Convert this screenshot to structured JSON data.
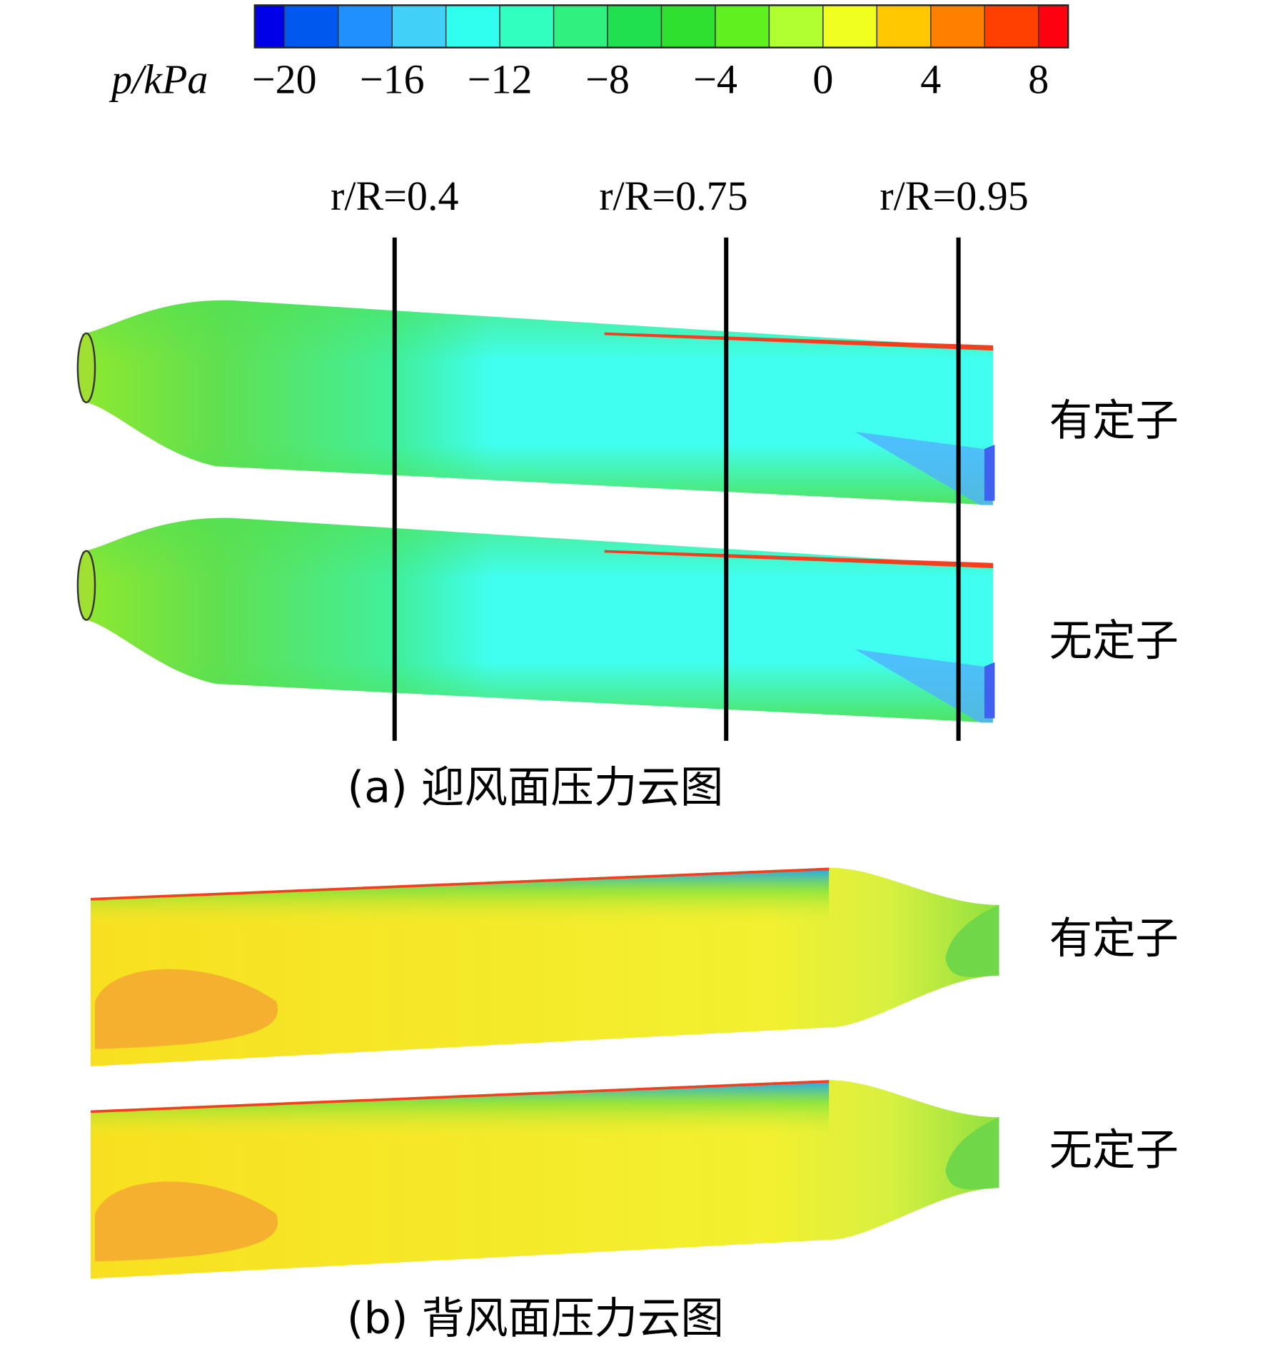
{
  "colorbar": {
    "label": "p/kPa",
    "range": [
      -21.1,
      9.1
    ],
    "levels": [
      -20,
      -18,
      -16,
      -14,
      -12,
      -10,
      -8,
      -6,
      -4,
      -2,
      0,
      2,
      4,
      6,
      8
    ],
    "colors": [
      "#0000e8",
      "#0058ee",
      "#2090ff",
      "#40d0f8",
      "#30fff0",
      "#30ffc0",
      "#30f080",
      "#20e050",
      "#30e030",
      "#60f020",
      "#b0ff30",
      "#f0ff20",
      "#ffc800",
      "#ff8000",
      "#ff4000",
      "#ff0010"
    ],
    "ticks": [
      {
        "value": -20,
        "label": "−20"
      },
      {
        "value": -16,
        "label": "−16"
      },
      {
        "value": -12,
        "label": "−12"
      },
      {
        "value": -8,
        "label": "−8"
      },
      {
        "value": -4,
        "label": "−4"
      },
      0,
      4,
      8
    ]
  },
  "sections": [
    "r/R=0.4",
    "r/R=0.75",
    "r/R=0.95"
  ],
  "panel_a": {
    "caption": "(a) 迎风面压力云图",
    "labels": [
      "有定子",
      "无定子"
    ]
  },
  "panel_b": {
    "caption": "(b) 背风面压力云图",
    "labels": [
      "有定子",
      "无定子"
    ]
  }
}
